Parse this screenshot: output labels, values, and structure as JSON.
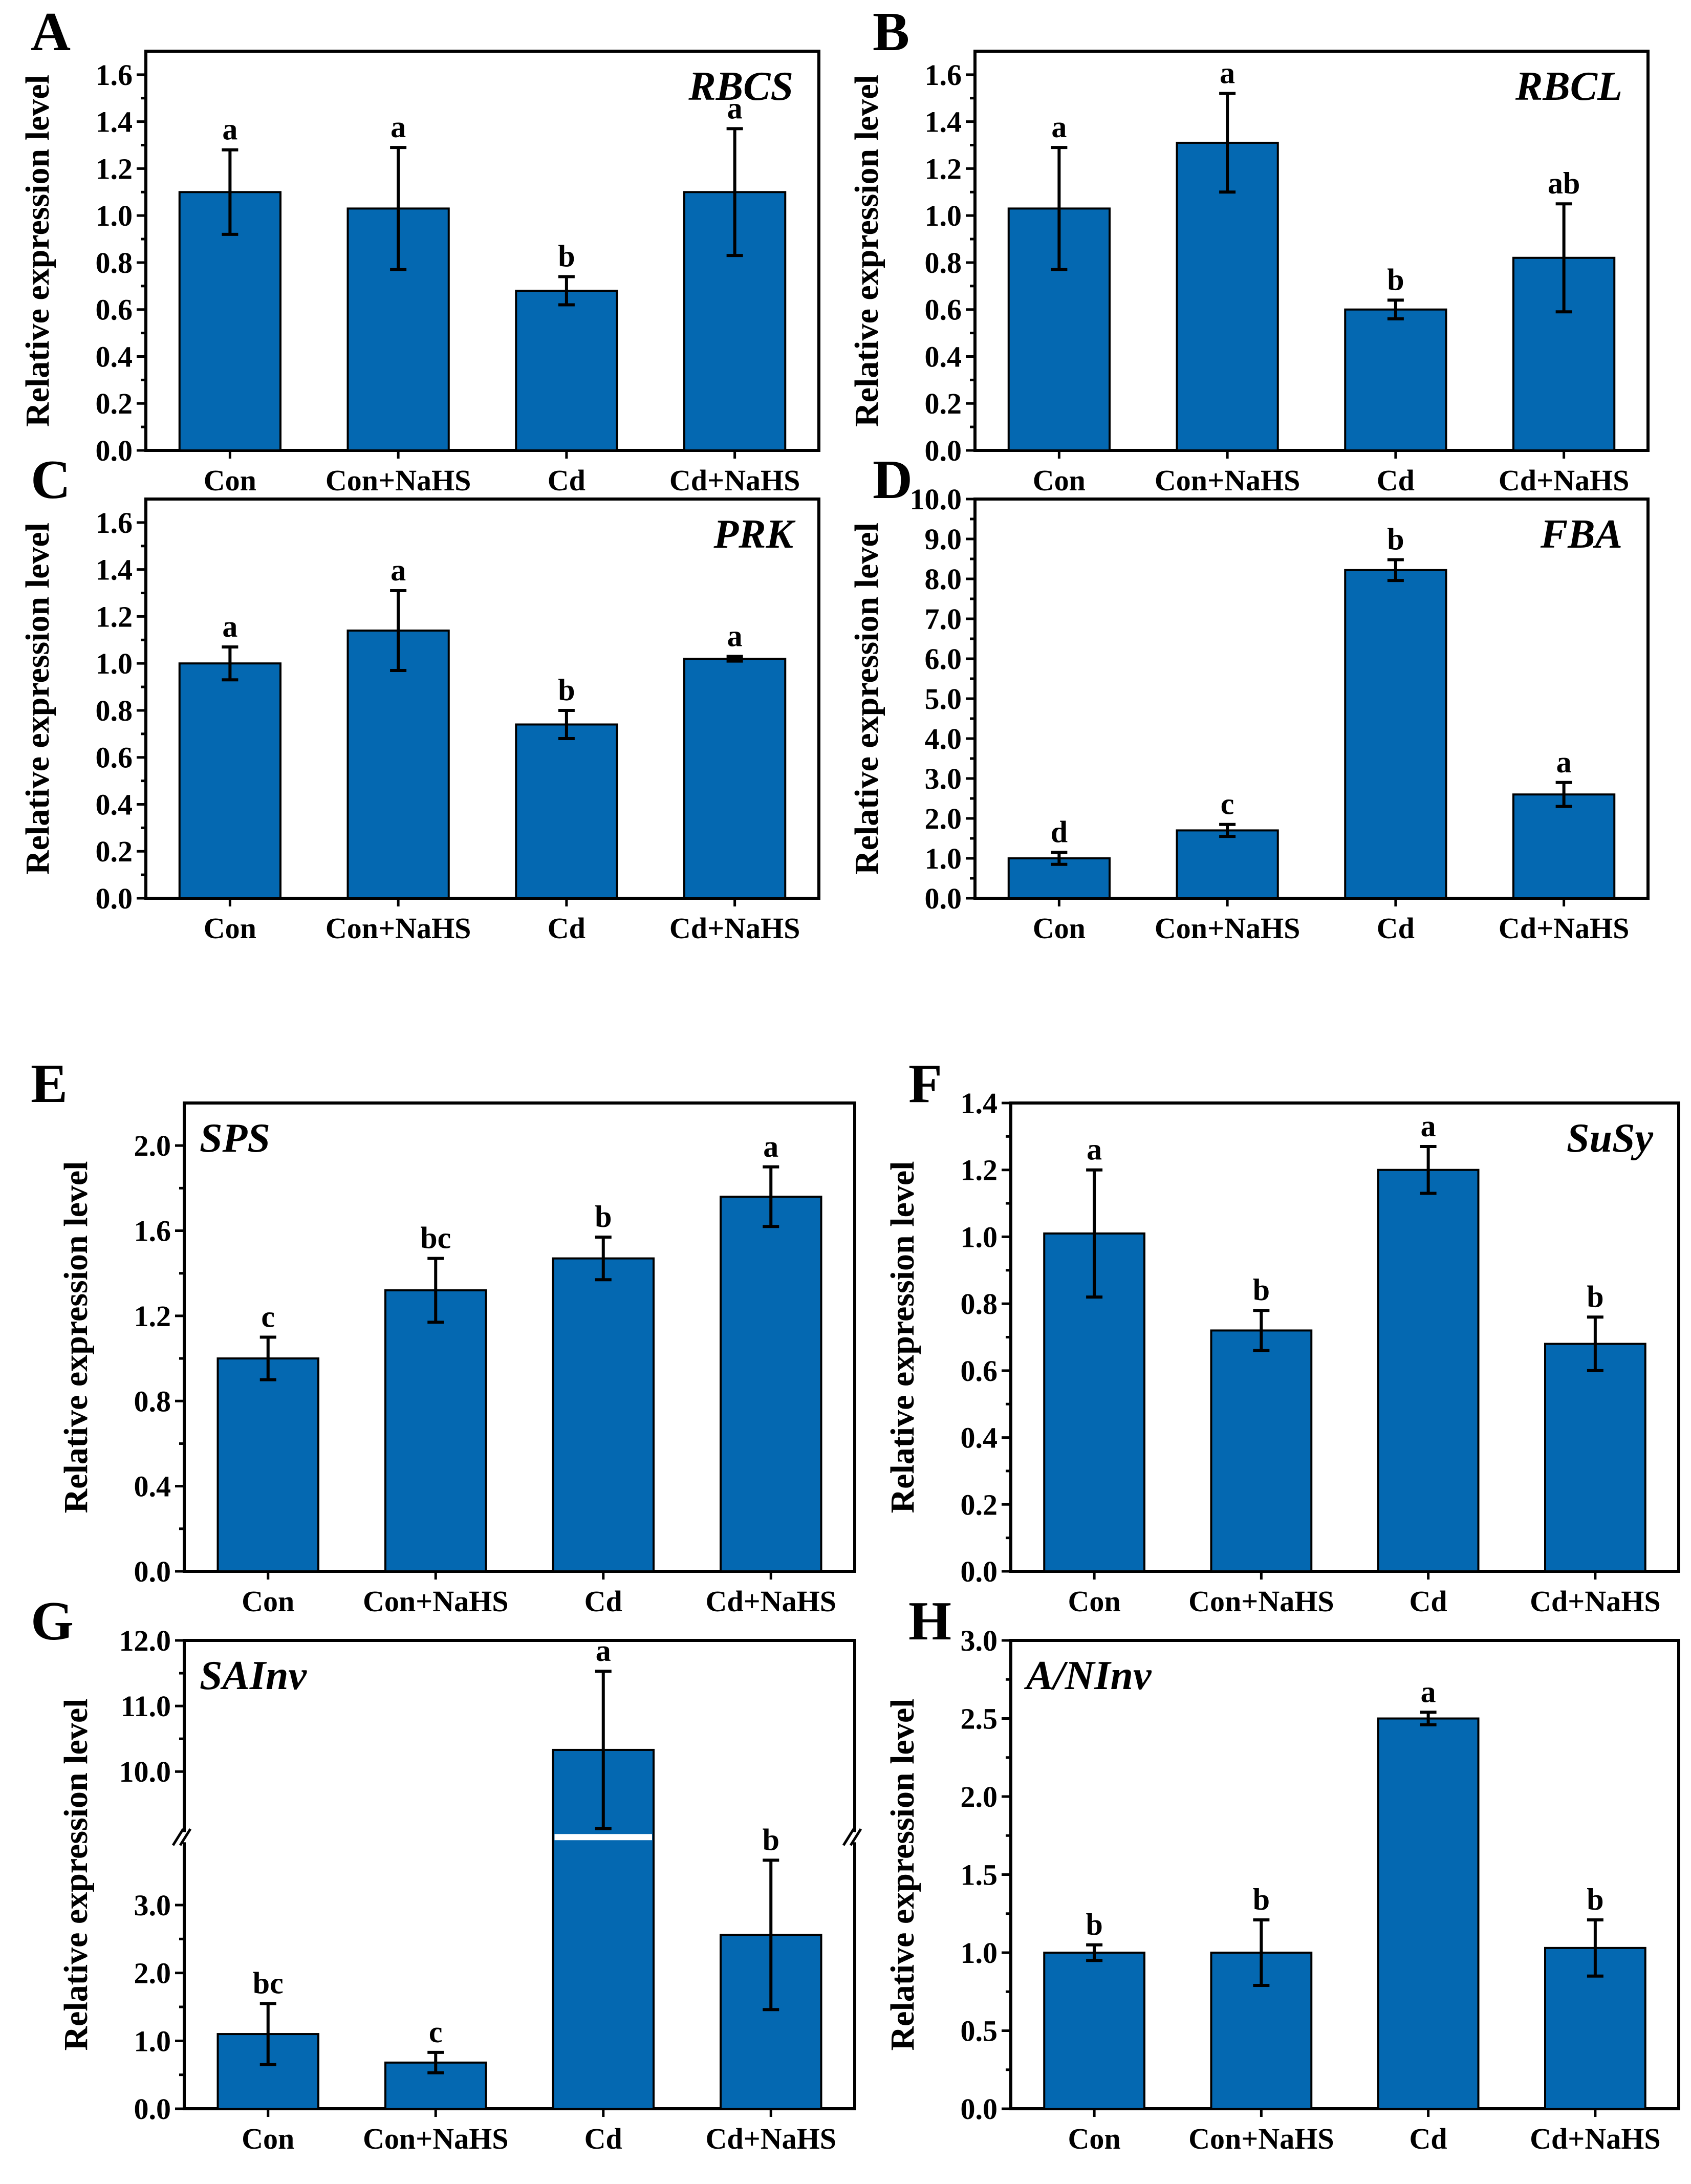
{
  "chart_data": [
    {
      "panel": "A",
      "gene": "RBCS",
      "type": "bar",
      "ylabel": "Relative expression level",
      "categories": [
        "Con",
        "Con+NaHS",
        "Cd",
        "Cd+NaHS"
      ],
      "values": [
        1.1,
        1.03,
        0.68,
        1.1
      ],
      "errors": [
        0.18,
        0.26,
        0.06,
        0.27
      ],
      "letters": [
        "a",
        "a",
        "b",
        "a"
      ],
      "ylim": [
        0,
        1.7
      ],
      "yticks": [
        "0.0",
        "0.2",
        "0.4",
        "0.6",
        "0.8",
        "1.0",
        "1.2",
        "1.4",
        "1.6"
      ],
      "gene_pos": "right"
    },
    {
      "panel": "B",
      "gene": "RBCL",
      "type": "bar",
      "ylabel": "Relative expression level",
      "categories": [
        "Con",
        "Con+NaHS",
        "Cd",
        "Cd+NaHS"
      ],
      "values": [
        1.03,
        1.31,
        0.6,
        0.82
      ],
      "errors": [
        0.26,
        0.21,
        0.04,
        0.23
      ],
      "letters": [
        "a",
        "a",
        "b",
        "ab"
      ],
      "ylim": [
        0,
        1.7
      ],
      "yticks": [
        "0.0",
        "0.2",
        "0.4",
        "0.6",
        "0.8",
        "1.0",
        "1.2",
        "1.4",
        "1.6"
      ],
      "gene_pos": "right"
    },
    {
      "panel": "C",
      "gene": "PRK",
      "type": "bar",
      "ylabel": "Relative expression level",
      "categories": [
        "Con",
        "Con+NaHS",
        "Cd",
        "Cd+NaHS"
      ],
      "values": [
        1.0,
        1.14,
        0.74,
        1.02
      ],
      "errors": [
        0.07,
        0.17,
        0.06,
        0.01
      ],
      "letters": [
        "a",
        "a",
        "b",
        "a"
      ],
      "ylim": [
        0,
        1.7
      ],
      "yticks": [
        "0.0",
        "0.2",
        "0.4",
        "0.6",
        "0.8",
        "1.0",
        "1.2",
        "1.4",
        "1.6"
      ],
      "gene_pos": "right"
    },
    {
      "panel": "D",
      "gene": "FBA",
      "type": "bar",
      "ylabel": "Relative expression level",
      "categories": [
        "Con",
        "Con+NaHS",
        "Cd",
        "Cd+NaHS"
      ],
      "values": [
        1.0,
        1.7,
        8.22,
        2.6
      ],
      "errors": [
        0.15,
        0.15,
        0.26,
        0.3
      ],
      "letters": [
        "d",
        "c",
        "b",
        "a"
      ],
      "ylim": [
        0,
        10
      ],
      "yticks": [
        "0.0",
        "1.0",
        "2.0",
        "3.0",
        "4.0",
        "5.0",
        "6.0",
        "7.0",
        "8.0",
        "9.0",
        "10.0"
      ],
      "gene_pos": "right"
    },
    {
      "panel": "E",
      "gene": "SPS",
      "type": "bar",
      "ylabel": "Relative expression level",
      "categories": [
        "Con",
        "Con+NaHS",
        "Cd",
        "Cd+NaHS"
      ],
      "values": [
        1.0,
        1.32,
        1.47,
        1.76
      ],
      "errors": [
        0.1,
        0.15,
        0.1,
        0.14
      ],
      "letters": [
        "c",
        "bc",
        "b",
        "a"
      ],
      "ylim": [
        0,
        2.2
      ],
      "yticks": [
        "0.0",
        "0.4",
        "0.8",
        "1.2",
        "1.6",
        "2.0"
      ],
      "gene_pos": "left"
    },
    {
      "panel": "F",
      "gene": "SuSy",
      "type": "bar",
      "ylabel": "Relative expression level",
      "categories": [
        "Con",
        "Con+NaHS",
        "Cd",
        "Cd+NaHS"
      ],
      "values": [
        1.01,
        0.72,
        1.2,
        0.68
      ],
      "errors": [
        0.19,
        0.06,
        0.07,
        0.08
      ],
      "letters": [
        "a",
        "b",
        "a",
        "b"
      ],
      "ylim": [
        0,
        1.4
      ],
      "yticks": [
        "0.0",
        "0.2",
        "0.4",
        "0.6",
        "0.8",
        "1.0",
        "1.2",
        "1.4"
      ],
      "gene_pos": "right"
    },
    {
      "panel": "G",
      "gene": "SAInv",
      "type": "bar",
      "ylabel": "Relative expression level",
      "categories": [
        "Con",
        "Con+NaHS",
        "Cd",
        "Cd+NaHS"
      ],
      "values": [
        1.1,
        0.68,
        10.33,
        2.56
      ],
      "errors": [
        0.45,
        0.15,
        1.2,
        1.1
      ],
      "letters": [
        "bc",
        "c",
        "a",
        "b"
      ],
      "axis_break": {
        "lower": [
          0,
          4.0
        ],
        "upper": [
          9.0,
          12.0
        ]
      },
      "yticks_lower": [
        "0.0",
        "1.0",
        "2.0",
        "3.0"
      ],
      "yticks_upper": [
        "10.0",
        "11.0",
        "12.0"
      ],
      "gene_pos": "left"
    },
    {
      "panel": "H",
      "gene": "A/NInv",
      "type": "bar",
      "ylabel": "Relative expression level",
      "categories": [
        "Con",
        "Con+NaHS",
        "Cd",
        "Cd+NaHS"
      ],
      "values": [
        1.0,
        1.0,
        2.5,
        1.03
      ],
      "errors": [
        0.05,
        0.21,
        0.04,
        0.18
      ],
      "letters": [
        "b",
        "b",
        "a",
        "b"
      ],
      "ylim": [
        0,
        3.0
      ],
      "yticks": [
        "0.0",
        "0.5",
        "1.0",
        "1.5",
        "2.0",
        "2.5",
        "3.0"
      ],
      "gene_pos": "left"
    }
  ]
}
